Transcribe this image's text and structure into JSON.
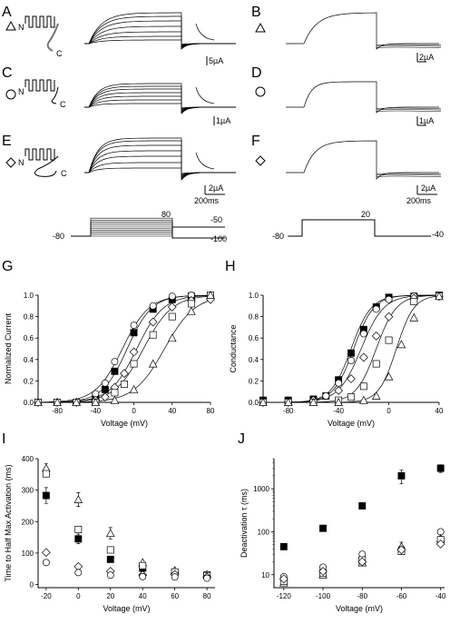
{
  "panels": {
    "A": {
      "label": "A",
      "scale": "5µA"
    },
    "B": {
      "label": "B",
      "scale": "2µA"
    },
    "C": {
      "label": "C",
      "scale": "1µA"
    },
    "D": {
      "label": "D",
      "scale": "1µA"
    },
    "E": {
      "label": "E",
      "scale": "2µA",
      "time": "200ms"
    },
    "F": {
      "label": "F",
      "scale": "2µA",
      "time": "200ms"
    },
    "G": {
      "label": "G"
    },
    "H": {
      "label": "H"
    },
    "I": {
      "label": "I"
    },
    "J": {
      "label": "J"
    }
  },
  "channel_labels": {
    "n": "N",
    "c": "C"
  },
  "protocol_left": {
    "hold": "-80",
    "step": "80",
    "tail1": "-50",
    "tail2": "-100"
  },
  "protocol_right": {
    "hold": "-80",
    "step": "20",
    "tail": "-40"
  },
  "chart_data": [
    {
      "panel": "G",
      "type": "scatter",
      "xlabel": "Voltage (mV)",
      "ylabel": "Normalized Current",
      "xlim": [
        -100,
        80
      ],
      "ylim": [
        0,
        1.0
      ],
      "xticks": [
        "-80",
        "-40",
        "0",
        "40",
        "80"
      ],
      "yticks": [
        "0.0",
        "0.2",
        "0.4",
        "0.6",
        "0.8",
        "1.0"
      ],
      "series": [
        {
          "marker": "filled-square",
          "x": [
            -100,
            -80,
            -60,
            -40,
            -30,
            -20,
            0,
            20,
            40,
            60,
            80
          ],
          "y": [
            0,
            0,
            0,
            0.05,
            0.12,
            0.29,
            0.65,
            0.87,
            0.96,
            0.99,
            0.99
          ],
          "v50": -7,
          "k": 13
        },
        {
          "marker": "circle",
          "x": [
            -100,
            -80,
            -60,
            -40,
            -30,
            -20,
            0,
            20,
            40,
            60,
            80
          ],
          "y": [
            0,
            0,
            0,
            0.08,
            0.18,
            0.38,
            0.72,
            0.9,
            0.99,
            1.0,
            1.0
          ],
          "v50": -12,
          "k": 14
        },
        {
          "marker": "diamond",
          "x": [
            -100,
            -80,
            -60,
            -40,
            -30,
            -20,
            -10,
            0,
            20,
            40,
            60,
            80
          ],
          "y": [
            0,
            0,
            0,
            0.02,
            0.05,
            0.14,
            0.27,
            0.47,
            0.75,
            0.89,
            0.95,
            0.96
          ],
          "v50": 3,
          "k": 14
        },
        {
          "marker": "square",
          "x": [
            -100,
            -80,
            -60,
            -40,
            -20,
            -10,
            0,
            20,
            40,
            60,
            80
          ],
          "y": [
            0,
            0,
            0,
            0,
            0.09,
            0.17,
            0.36,
            0.63,
            0.8,
            0.92,
            1.0
          ],
          "v50": 10,
          "k": 15
        },
        {
          "marker": "triangle",
          "x": [
            -100,
            -80,
            -60,
            -40,
            -20,
            0,
            20,
            40,
            60,
            80
          ],
          "y": [
            0,
            0,
            0,
            0,
            0.02,
            0.12,
            0.36,
            0.6,
            0.85,
            1.0
          ],
          "v50": 32,
          "k": 16
        }
      ]
    },
    {
      "panel": "H",
      "type": "scatter",
      "xlabel": "Voltage (mV)",
      "ylabel": "Conductance",
      "xlim": [
        -100,
        40
      ],
      "ylim": [
        0,
        1.0
      ],
      "xticks": [
        "-80",
        "-40",
        "0",
        "40"
      ],
      "yticks": [
        "0.0",
        "0.2",
        "0.4",
        "0.6",
        "0.8",
        "1.0"
      ],
      "series": [
        {
          "marker": "filled-square",
          "x": [
            -100,
            -80,
            -60,
            -50,
            -40,
            -30,
            -20,
            -10,
            0,
            20,
            40
          ],
          "y": [
            0.02,
            0.02,
            0.03,
            0.06,
            0.21,
            0.46,
            0.68,
            0.89,
            0.98,
            0.99,
            1.0
          ],
          "v50": -30,
          "k": 8
        },
        {
          "marker": "circle",
          "x": [
            -100,
            -80,
            -60,
            -50,
            -40,
            -30,
            -20,
            -10,
            0,
            20,
            40
          ],
          "y": [
            0.01,
            0.01,
            0.02,
            0.06,
            0.18,
            0.39,
            0.64,
            0.87,
            0.96,
            0.99,
            1.0
          ],
          "v50": -28,
          "k": 8
        },
        {
          "marker": "diamond",
          "x": [
            -100,
            -80,
            -60,
            -40,
            -30,
            -20,
            -10,
            0,
            20,
            40
          ],
          "y": [
            0,
            0,
            0.02,
            0.11,
            0.22,
            0.42,
            0.62,
            0.8,
            0.97,
            0.99
          ],
          "v50": -22,
          "k": 9
        },
        {
          "marker": "square",
          "x": [
            -100,
            -80,
            -60,
            -40,
            -30,
            -20,
            -10,
            0,
            20,
            40
          ],
          "y": [
            0,
            0,
            0,
            0.02,
            0.05,
            0.15,
            0.36,
            0.58,
            0.94,
            0.99
          ],
          "v50": -10,
          "k": 8
        },
        {
          "marker": "triangle",
          "x": [
            -100,
            -80,
            -60,
            -40,
            -20,
            -10,
            0,
            10,
            20,
            40
          ],
          "y": [
            0,
            0,
            0,
            0,
            0.02,
            0.06,
            0.24,
            0.54,
            0.79,
            0.99
          ],
          "v50": 6,
          "k": 7
        }
      ]
    },
    {
      "panel": "I",
      "type": "scatter",
      "xlabel": "Voltage (mV)",
      "ylabel": "Time to Half Max Activation (ms)",
      "xlim": [
        -25,
        85
      ],
      "ylim": [
        -10,
        400
      ],
      "xticks": [
        "-20",
        "0",
        "20",
        "40",
        "60",
        "80"
      ],
      "yticks": [
        "0",
        "100",
        "200",
        "300",
        "400"
      ],
      "series": [
        {
          "marker": "filled-square",
          "x": [
            -20,
            0,
            20,
            40,
            60,
            80
          ],
          "y": [
            283,
            145,
            80,
            52,
            38,
            30
          ],
          "err": [
            25,
            15,
            0,
            0,
            0,
            0
          ]
        },
        {
          "marker": "triangle",
          "x": [
            -20,
            0,
            20,
            40,
            60,
            80
          ],
          "y": [
            370,
            270,
            163,
            70,
            45,
            32
          ],
          "err": [
            15,
            22,
            18,
            0,
            0,
            0
          ]
        },
        {
          "marker": "square",
          "x": [
            -20,
            0,
            20,
            40,
            60,
            80
          ],
          "y": [
            352,
            175,
            110,
            60,
            40,
            28
          ]
        },
        {
          "marker": "diamond",
          "x": [
            -20,
            0,
            20,
            40,
            60,
            80
          ],
          "y": [
            102,
            57,
            42,
            30,
            32,
            24
          ]
        },
        {
          "marker": "circle",
          "x": [
            -20,
            0,
            20,
            40,
            60,
            80
          ],
          "y": [
            70,
            38,
            30,
            25,
            24,
            20
          ]
        }
      ]
    },
    {
      "panel": "J",
      "type": "scatter",
      "xlabel": "Voltage (mV)",
      "ylabel": "Deactivation τ (ms)",
      "xlim": [
        -125,
        -38
      ],
      "ylim": [
        5,
        5000
      ],
      "yscale": "log",
      "xticks": [
        "-120",
        "-100",
        "-80",
        "-60",
        "-40"
      ],
      "yticks": [
        "10",
        "100",
        "1000"
      ],
      "series": [
        {
          "marker": "filled-square",
          "x": [
            -120,
            -100,
            -80,
            -60,
            -40
          ],
          "y": [
            45,
            120,
            400,
            2000,
            3000
          ],
          "err": [
            0,
            0,
            0,
            700,
            600
          ]
        },
        {
          "marker": "circle",
          "x": [
            -120,
            -100,
            -80,
            -60,
            -40
          ],
          "y": [
            9,
            15,
            30,
            40,
            100
          ]
        },
        {
          "marker": "triangle",
          "x": [
            -120,
            -100,
            -80,
            -60,
            -40
          ],
          "y": [
            6.5,
            10,
            19,
            45,
            70
          ],
          "err": [
            0,
            0,
            0,
            12,
            0
          ]
        },
        {
          "marker": "square",
          "x": [
            -120,
            -100,
            -80,
            -60,
            -40
          ],
          "y": [
            7,
            11,
            22,
            35,
            65
          ]
        },
        {
          "marker": "diamond",
          "x": [
            -120,
            -100,
            -80,
            -60,
            -40
          ],
          "y": [
            8,
            12,
            20,
            38,
            52
          ]
        }
      ]
    }
  ]
}
